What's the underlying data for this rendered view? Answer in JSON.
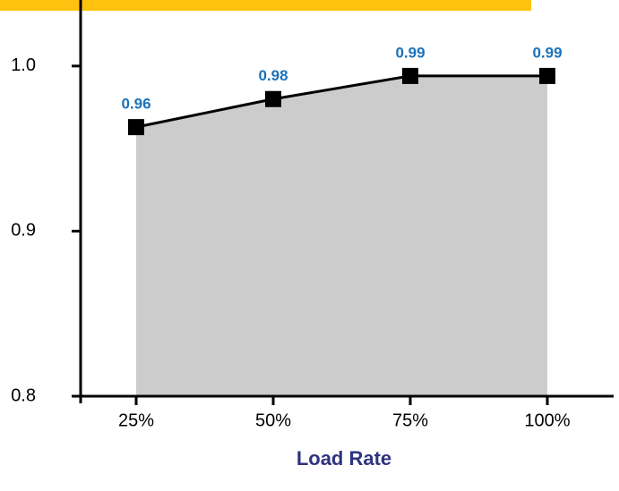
{
  "chart_data": {
    "type": "area-line",
    "x_label": "Load Rate",
    "categories": [
      "25%",
      "50%",
      "75%",
      "100%"
    ],
    "values": [
      0.963,
      0.98,
      0.994,
      0.994
    ],
    "value_labels": [
      "0.96",
      "0.98",
      "0.99",
      "0.99"
    ],
    "ylim": [
      0.8,
      1.04
    ],
    "yticks": [
      0.8,
      0.9,
      {
        "value": 1,
        "label": "1.0"
      }
    ],
    "line_color": "#000000",
    "area_color": "#cccccc",
    "label_color": "#1a72bb"
  }
}
